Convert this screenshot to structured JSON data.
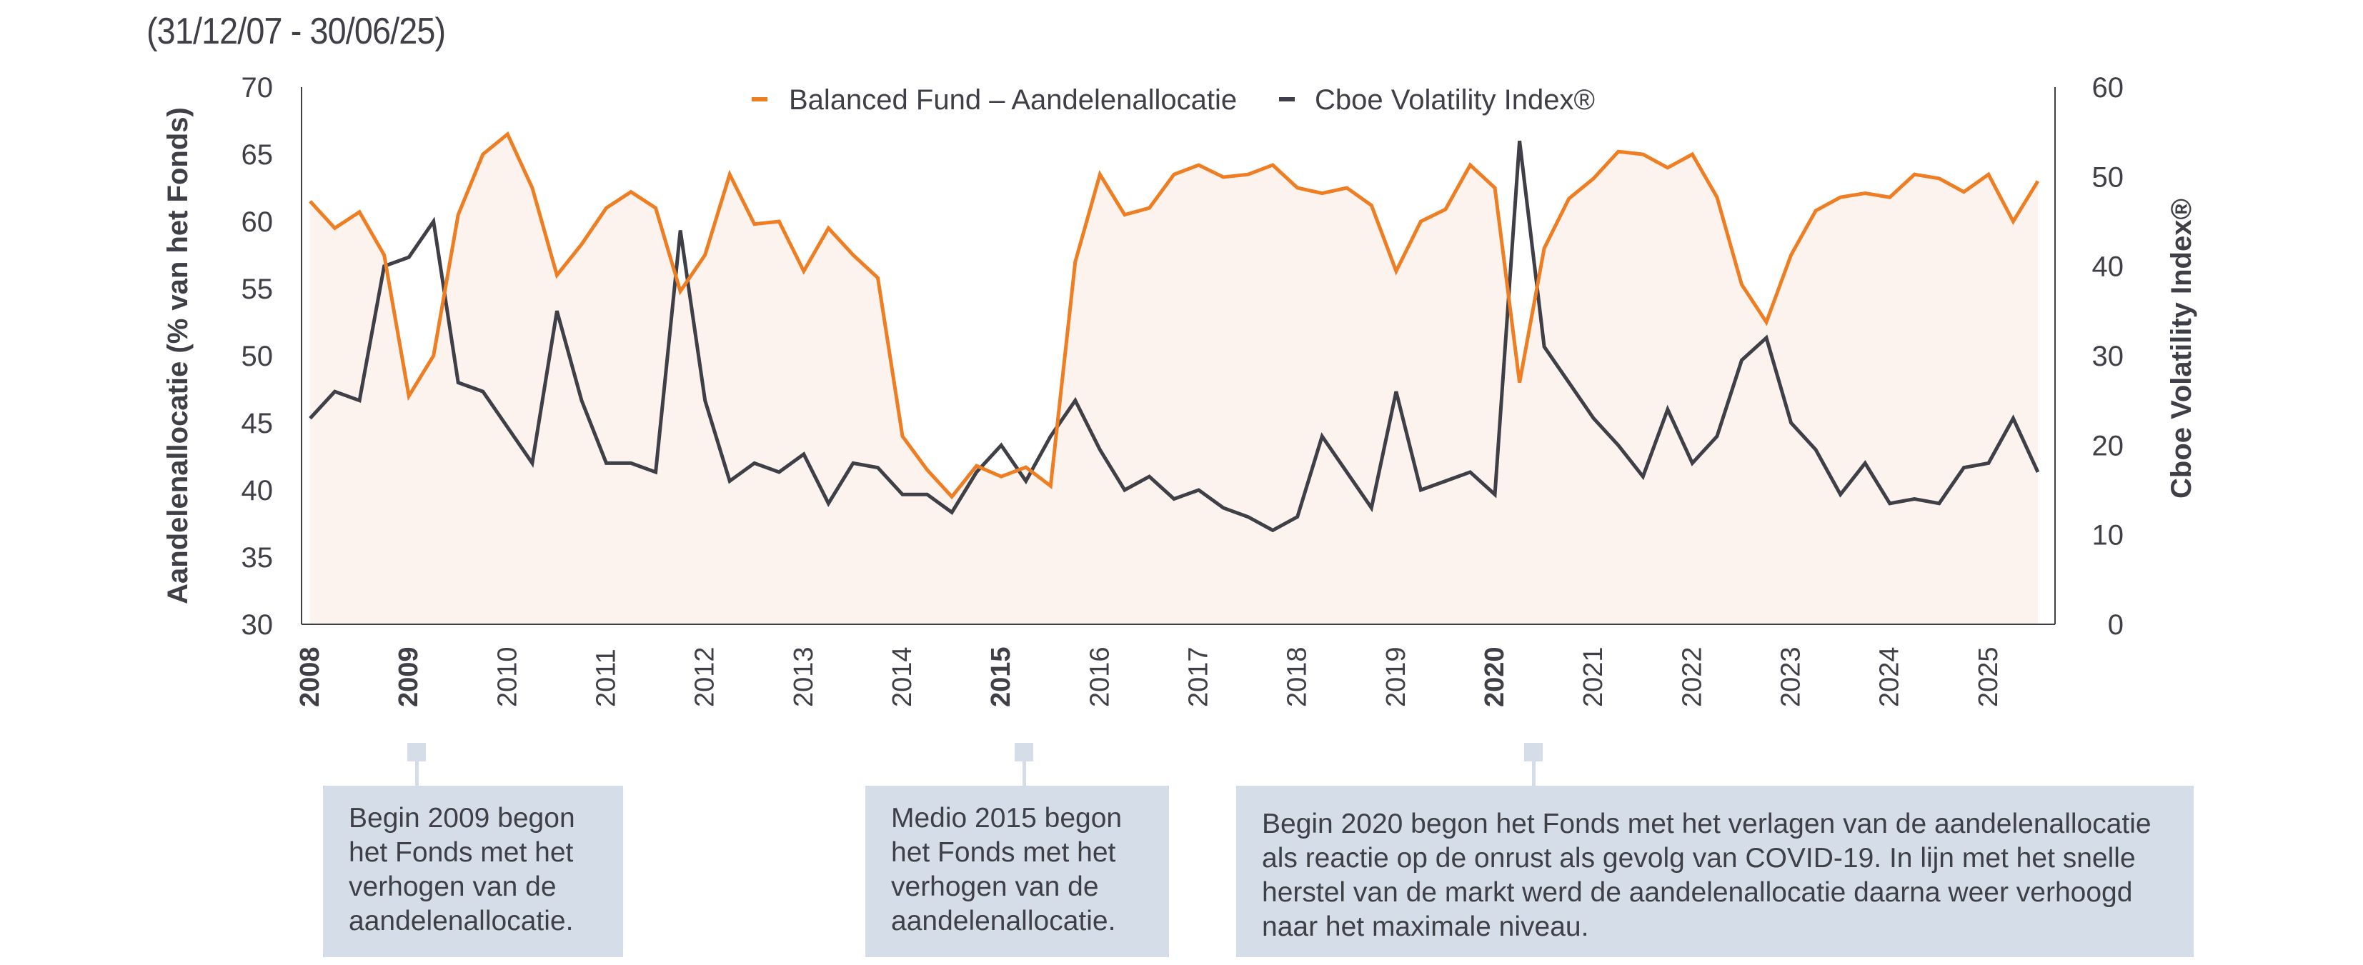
{
  "date_range": "(31/12/07 - 30/06/25)",
  "chart_data": {
    "type": "line",
    "title": "",
    "subtitle": "(31/12/07 - 30/06/25)",
    "x_start": 2008.0,
    "x_step": 0.25,
    "xlim": [
      2008,
      2025.5
    ],
    "x_tick_labels": [
      "2008",
      "2009",
      "2010",
      "2011",
      "2012",
      "2013",
      "2014",
      "2015",
      "2016",
      "2017",
      "2018",
      "2019",
      "2020",
      "2021",
      "2022",
      "2023",
      "2024",
      "2025"
    ],
    "x_tick_bold": [
      "2008",
      "2009",
      "2015",
      "2020"
    ],
    "ylabel_left": "Aandelenallocatie (% van het Fonds)",
    "ylabel_right": "Cboe Volatility Index®",
    "ylim_left": [
      30,
      70
    ],
    "ylim_right": [
      0,
      60
    ],
    "y_ticks_left": [
      30,
      35,
      40,
      45,
      50,
      55,
      60,
      65,
      70
    ],
    "y_ticks_right": [
      0,
      10,
      20,
      30,
      40,
      50,
      60
    ],
    "grid": false,
    "legend_position": "top-center",
    "series": [
      {
        "name": "Balanced Fund – Aandelenallocatie",
        "axis": "left",
        "color": "#ef7d22",
        "fill": "#fdf3ee",
        "values": [
          61.5,
          59.5,
          60.7,
          57.5,
          47,
          50,
          60.5,
          65,
          66.5,
          62.5,
          56,
          58.3,
          61,
          62.2,
          61,
          54.8,
          57.5,
          63.5,
          59.8,
          60,
          56.3,
          59.5,
          57.5,
          55.8,
          44,
          41.5,
          39.5,
          41.8,
          41,
          41.7,
          40.3,
          57,
          63.5,
          60.5,
          61,
          63.5,
          64.2,
          63.3,
          63.5,
          64.2,
          62.5,
          62.1,
          62.5,
          61.2,
          56.3,
          60,
          60.9,
          64.2,
          62.5,
          48,
          58,
          61.7,
          63.2,
          65.2,
          65,
          64,
          65,
          61.8,
          55.3,
          52.5,
          57.5,
          60.8,
          61.8,
          62.1,
          61.8,
          63.5,
          63.2,
          62.2,
          63.5,
          60,
          63
        ]
      },
      {
        "name": "Cboe Volatility Index®",
        "axis": "right",
        "color": "#3f3f48",
        "values": [
          23,
          26,
          25,
          40,
          41,
          45,
          27,
          26,
          22,
          18,
          35,
          25,
          18,
          18,
          17,
          44,
          25,
          16,
          18,
          17,
          19,
          13.5,
          18,
          17.5,
          14.5,
          14.5,
          12.5,
          17,
          20,
          16,
          21,
          25,
          19.5,
          15,
          16.5,
          14,
          15,
          13,
          12,
          10.5,
          12,
          21,
          17,
          13,
          26,
          15,
          16,
          17,
          14.5,
          54,
          31,
          27,
          23,
          20,
          16.5,
          24,
          18,
          21,
          29.5,
          32,
          22.5,
          19.5,
          14.5,
          18,
          13.5,
          14,
          13.5,
          17.5,
          18,
          23,
          17
        ]
      }
    ]
  },
  "annotations": [
    {
      "year": "2009",
      "text": "Begin 2009 begon het Fonds met het verhogen van de aandelenallocatie."
    },
    {
      "year": "2015",
      "text": "Medio 2015 begon het Fonds met het verhogen van de aandelenallocatie."
    },
    {
      "year": "2020",
      "text": "Begin 2020 begon het Fonds met het verlagen van de aandelenallocatie als reactie op de onrust als gevolg van COVID-19. In lijn met het snelle herstel van de markt werd de aandelenallocatie daarna weer verhoogd naar het maximale niveau."
    }
  ]
}
